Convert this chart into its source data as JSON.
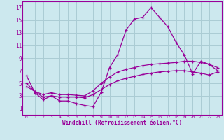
{
  "xlabel": "Windchill (Refroidissement éolien,°C)",
  "xlim": [
    -0.5,
    23.5
  ],
  "ylim": [
    0,
    18
  ],
  "xticks": [
    0,
    1,
    2,
    3,
    4,
    5,
    6,
    7,
    8,
    9,
    10,
    11,
    12,
    13,
    14,
    15,
    16,
    17,
    18,
    19,
    20,
    21,
    22,
    23
  ],
  "yticks": [
    1,
    3,
    5,
    7,
    9,
    11,
    13,
    15,
    17
  ],
  "background_color": "#cce8ee",
  "grid_color": "#aaccd4",
  "line_color": "#990099",
  "line1_x": [
    0,
    1,
    2,
    3,
    4,
    5,
    6,
    7,
    8,
    9,
    10,
    11,
    12,
    13,
    14,
    15,
    16,
    17,
    18,
    19,
    20,
    21,
    22,
    23
  ],
  "line1_y": [
    6.2,
    3.5,
    2.4,
    3.0,
    2.2,
    2.2,
    1.8,
    1.5,
    1.3,
    3.6,
    7.5,
    9.6,
    13.5,
    15.2,
    15.5,
    17.0,
    15.5,
    14.0,
    11.5,
    9.5,
    6.5,
    8.5,
    8.0,
    7.5
  ],
  "line2_x": [
    0,
    1,
    2,
    3,
    4,
    5,
    6,
    7,
    8,
    9,
    10,
    11,
    12,
    13,
    14,
    15,
    16,
    17,
    18,
    19,
    20,
    21,
    22,
    23
  ],
  "line2_y": [
    5.0,
    3.7,
    3.2,
    3.5,
    3.2,
    3.2,
    3.1,
    3.0,
    3.8,
    5.0,
    6.0,
    6.8,
    7.2,
    7.5,
    7.8,
    8.0,
    8.1,
    8.2,
    8.3,
    8.5,
    8.5,
    8.3,
    8.0,
    7.0
  ],
  "line3_x": [
    0,
    1,
    2,
    3,
    4,
    5,
    6,
    7,
    8,
    9,
    10,
    11,
    12,
    13,
    14,
    15,
    16,
    17,
    18,
    19,
    20,
    21,
    22,
    23
  ],
  "line3_y": [
    4.5,
    3.7,
    2.8,
    3.0,
    2.8,
    2.8,
    2.8,
    2.7,
    3.2,
    4.0,
    4.8,
    5.4,
    5.8,
    6.1,
    6.4,
    6.6,
    6.8,
    6.9,
    7.0,
    7.0,
    6.8,
    6.6,
    6.3,
    6.8
  ]
}
